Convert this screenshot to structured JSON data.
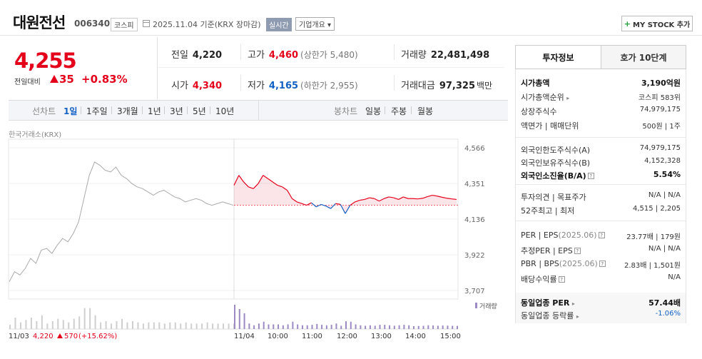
{
  "header": {
    "name": "대원전선",
    "code": "006340",
    "market": "코스피",
    "date_text": "2025.11.04 기준(KRX 장마감)",
    "realtime": "실시간",
    "overview": "기업개요 ▾",
    "mystock": "MY STOCK 추가"
  },
  "price": {
    "current": "4,255",
    "change_label": "전일대비",
    "change": "35",
    "rate": "+0.83%"
  },
  "quote": {
    "prev_label": "전일",
    "prev": "4,220",
    "high_label": "고가",
    "high": "4,460",
    "upper_label": "(상한가 5,480)",
    "volume_label": "거래량",
    "volume": "22,481,498",
    "open_label": "시가",
    "open": "4,340",
    "low_label": "저가",
    "low": "4,165",
    "lower_label": "(하한가 2,955)",
    "amount_label": "거래대금",
    "amount": "97,325",
    "amount_unit": "백만"
  },
  "periods": {
    "line_label": "선차트",
    "items": [
      "1일",
      "1주일",
      "3개월",
      "1년",
      "3년",
      "5년",
      "10년"
    ],
    "active": "1일",
    "candle_label": "봉차트",
    "candles": [
      "일봉",
      "주봉",
      "월봉"
    ]
  },
  "chart_data": {
    "type": "line",
    "source": "한국거래소(KRX)",
    "y_ticks": [
      "4,566",
      "4,351",
      "4,136",
      "3,922",
      "3,707"
    ],
    "ylim": [
      3707,
      4566
    ],
    "base_price": 4220,
    "volume_legend": "거래량",
    "x_labels": [
      "11/03",
      "11/04",
      "10:00",
      "11:00",
      "12:00",
      "13:00",
      "14:00",
      "15:00"
    ],
    "prev_day_summary": {
      "date": "11/03",
      "close": "4,220",
      "change": "570",
      "rate": "(+15.62%)"
    },
    "series": [
      {
        "name": "11/03",
        "values": [
          3760,
          3820,
          3800,
          3840,
          3900,
          3870,
          3950,
          3960,
          3930,
          3980,
          4020,
          4000,
          4050,
          4120,
          4260,
          4400,
          4480,
          4460,
          4430,
          4420,
          4450,
          4400,
          4380,
          4350,
          4330,
          4320,
          4300,
          4280,
          4300,
          4310,
          4290,
          4270,
          4260,
          4240,
          4250,
          4260,
          4250,
          4230,
          4220,
          4230,
          4240,
          4230,
          4220
        ]
      },
      {
        "name": "11/04",
        "values": [
          4340,
          4400,
          4360,
          4330,
          4320,
          4350,
          4400,
          4380,
          4360,
          4340,
          4330,
          4310,
          4260,
          4240,
          4230,
          4220,
          4235,
          4210,
          4225,
          4215,
          4200,
          4230,
          4225,
          4170,
          4220,
          4240,
          4250,
          4255,
          4265,
          4260,
          4245,
          4260,
          4270,
          4265,
          4255,
          4270,
          4260,
          4260,
          4258,
          4262,
          4272,
          4280,
          4275,
          4268,
          4262,
          4258,
          4255
        ]
      }
    ]
  },
  "tabs": {
    "invest": "투자정보",
    "hoga": "호가 10단계"
  },
  "info": {
    "mcap_label": "시가총액",
    "mcap": "3,190억원",
    "mcap_rank_label": "시가총액순위",
    "mcap_rank": "코스피 583위",
    "shares_label": "상장주식수",
    "shares": "74,979,175",
    "par_label": "액면가 | 매매단위",
    "par": "500원 | 1주",
    "foreign_limit_label": "외국인한도주식수(A)",
    "foreign_limit": "74,979,175",
    "foreign_hold_label": "외국인보유주식수(B)",
    "foreign_hold": "4,152,328",
    "foreign_ratio_label": "외국인소진율(B/A)",
    "foreign_ratio": "5.54%",
    "opinion_label": "투자의견 | 목표주가",
    "opinion": "N/A | N/A",
    "week52_label": "52주최고 | 최저",
    "week52": "4,515 | 2,205",
    "per_label": "PER | EPS",
    "per_year": "(2025.06)",
    "per": "23.77배 | 179원",
    "est_per_label": "추정PER | EPS",
    "est_per": "N/A | N/A",
    "pbr_label": "PBR | BPS",
    "pbr_year": "(2025.06)",
    "pbr": "2.83배 | 1,501원",
    "div_label": "배당수익률",
    "div": "N/A",
    "ind_per_label": "동일업종 PER",
    "ind_per": "57.44배",
    "ind_rate_label": "동일업종 등락률",
    "ind_rate": "-1.06%"
  },
  "colors": {
    "up": "#e4001b",
    "down": "#1261c4",
    "prev_line": "#aaaaaa",
    "volume": "#9b8ac4"
  }
}
